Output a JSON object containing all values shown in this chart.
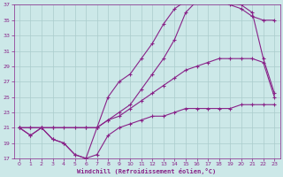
{
  "xlabel": "Windchill (Refroidissement éolien,°C)",
  "bg_color": "#cce8e8",
  "grid_color": "#aacccc",
  "line_color": "#882288",
  "xlim": [
    -0.5,
    23.5
  ],
  "ylim": [
    17,
    37
  ],
  "xticks": [
    0,
    1,
    2,
    3,
    4,
    5,
    6,
    7,
    8,
    9,
    10,
    11,
    12,
    13,
    14,
    15,
    16,
    17,
    18,
    19,
    20,
    21,
    22,
    23
  ],
  "yticks": [
    17,
    19,
    21,
    23,
    25,
    27,
    29,
    31,
    33,
    35,
    37
  ],
  "lines": [
    {
      "x": [
        0,
        1,
        2,
        3,
        4,
        5,
        6,
        7,
        8,
        9,
        10,
        11,
        12,
        13,
        14,
        15,
        16,
        17,
        18,
        19,
        20,
        21,
        22,
        23
      ],
      "y": [
        21,
        20,
        21,
        19.5,
        19,
        17.5,
        17,
        17.5,
        20,
        21,
        21.5,
        22,
        22.5,
        22.5,
        23,
        23.5,
        23.5,
        23.5,
        23.5,
        23.5,
        24,
        24,
        24,
        24
      ]
    },
    {
      "x": [
        0,
        1,
        2,
        3,
        4,
        5,
        6,
        7,
        8,
        9,
        10,
        11,
        12,
        13,
        14,
        15,
        16,
        17,
        18,
        19,
        20,
        21,
        22,
        23
      ],
      "y": [
        21,
        21,
        21,
        21,
        21,
        21,
        21,
        21,
        22,
        22.5,
        23.5,
        24.5,
        25.5,
        26.5,
        27.5,
        28.5,
        29,
        29.5,
        30,
        30,
        30,
        30,
        29.5,
        25
      ]
    },
    {
      "x": [
        0,
        1,
        2,
        3,
        6,
        7,
        8,
        9,
        10,
        11,
        12,
        13,
        14,
        15,
        16,
        17,
        18,
        19,
        20,
        21,
        22,
        23
      ],
      "y": [
        21,
        21,
        21,
        21,
        21,
        21,
        22,
        23,
        24,
        26,
        28,
        30,
        32.5,
        36,
        37.5,
        37.5,
        37.5,
        37,
        36.5,
        35.5,
        35,
        35
      ]
    },
    {
      "x": [
        0,
        1,
        2,
        3,
        4,
        5,
        6,
        7,
        8,
        9,
        10,
        11,
        12,
        13,
        14,
        15,
        16,
        17,
        18,
        20,
        21,
        22,
        23
      ],
      "y": [
        21,
        20,
        21,
        19.5,
        19,
        17.5,
        17,
        21,
        25,
        27,
        28,
        30,
        32,
        34.5,
        36.5,
        37.5,
        37.5,
        37.5,
        37.5,
        37,
        36,
        30,
        25.5
      ]
    }
  ]
}
